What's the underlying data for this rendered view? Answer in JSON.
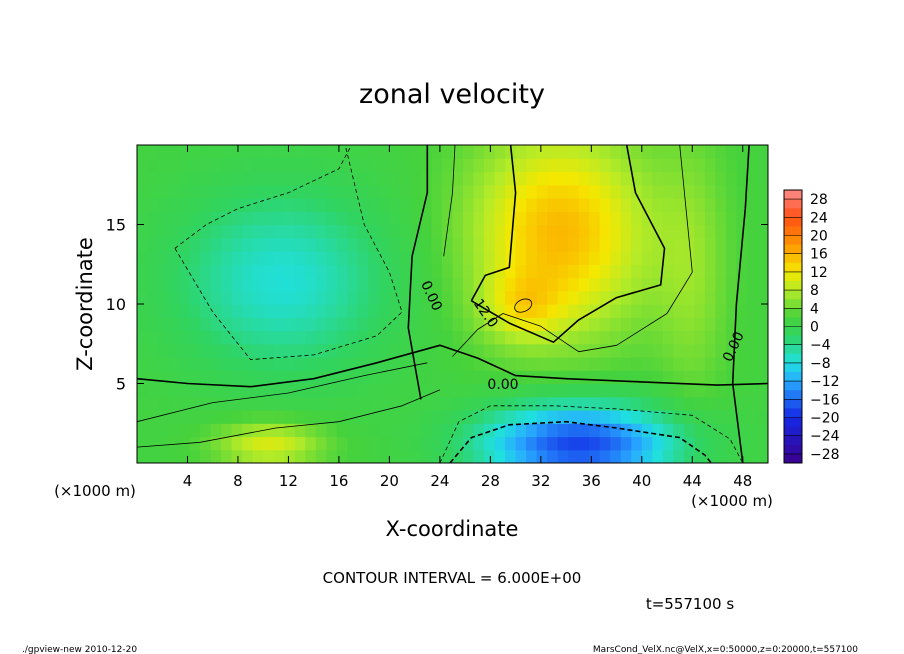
{
  "chart_data": {
    "type": "heatmap",
    "title": "zonal velocity",
    "xlabel": "X-coordinate",
    "ylabel": "Z-coordinate",
    "x_unit": "(×1000 m)",
    "y_unit": "(×1000 m)",
    "x_ticks": [
      "4",
      "8",
      "12",
      "16",
      "20",
      "24",
      "28",
      "32",
      "36",
      "40",
      "44",
      "48"
    ],
    "y_ticks": [
      "5",
      "10",
      "15"
    ],
    "xlim": [
      0,
      50
    ],
    "ylim": [
      0,
      20
    ],
    "colorbar_ticks": [
      "28",
      "24",
      "20",
      "16",
      "12",
      "8",
      "4",
      "0",
      "−4",
      "−8",
      "−12",
      "−16",
      "−20",
      "−24",
      "−28"
    ],
    "colorbar_range": [
      -30,
      30
    ],
    "contour_labels": [
      {
        "text": "0.00",
        "x": 23.3,
        "y": 10.5,
        "rotate": 65
      },
      {
        "text": "12.0",
        "x": 27.6,
        "y": 9.4,
        "rotate": 55
      },
      {
        "text": "0.00",
        "x": 29.0,
        "y": 4.9,
        "rotate": 0
      },
      {
        "text": "0.00",
        "x": 47.3,
        "y": 7.3,
        "rotate": -65
      }
    ],
    "field_blobs": [
      {
        "x": 33.5,
        "y": 14.5,
        "sx": 5.0,
        "sy": 4.5,
        "value": 14
      },
      {
        "x": 30.5,
        "y": 9.8,
        "sx": 2.2,
        "sy": 1.5,
        "value": 6
      },
      {
        "x": 35.0,
        "y": 1.2,
        "sx": 5.5,
        "sy": 1.8,
        "value": -20
      },
      {
        "x": 11.5,
        "y": 11.5,
        "sx": 6.0,
        "sy": 4.0,
        "value": -9
      },
      {
        "x": 10.5,
        "y": 1.2,
        "sx": 3.0,
        "sy": 1.0,
        "value": 9
      },
      {
        "x": 44.0,
        "y": 12.0,
        "sx": 2.0,
        "sy": 6.0,
        "value": 4
      }
    ],
    "colors": {
      "high": "#ff4040",
      "mid_warm": "#f5e800",
      "zero": "#3fd040",
      "mid_cool": "#20e0e0",
      "low": "#3a008c"
    }
  },
  "labels": {
    "contour_interval": "CONTOUR INTERVAL = 6.000E+00",
    "time": "t=557100 s",
    "footer_left": "./gpview-new  2010-12-20",
    "footer_right": "MarsCond_VelX.nc@VelX,x=0:50000,z=0:20000,t=557100"
  }
}
